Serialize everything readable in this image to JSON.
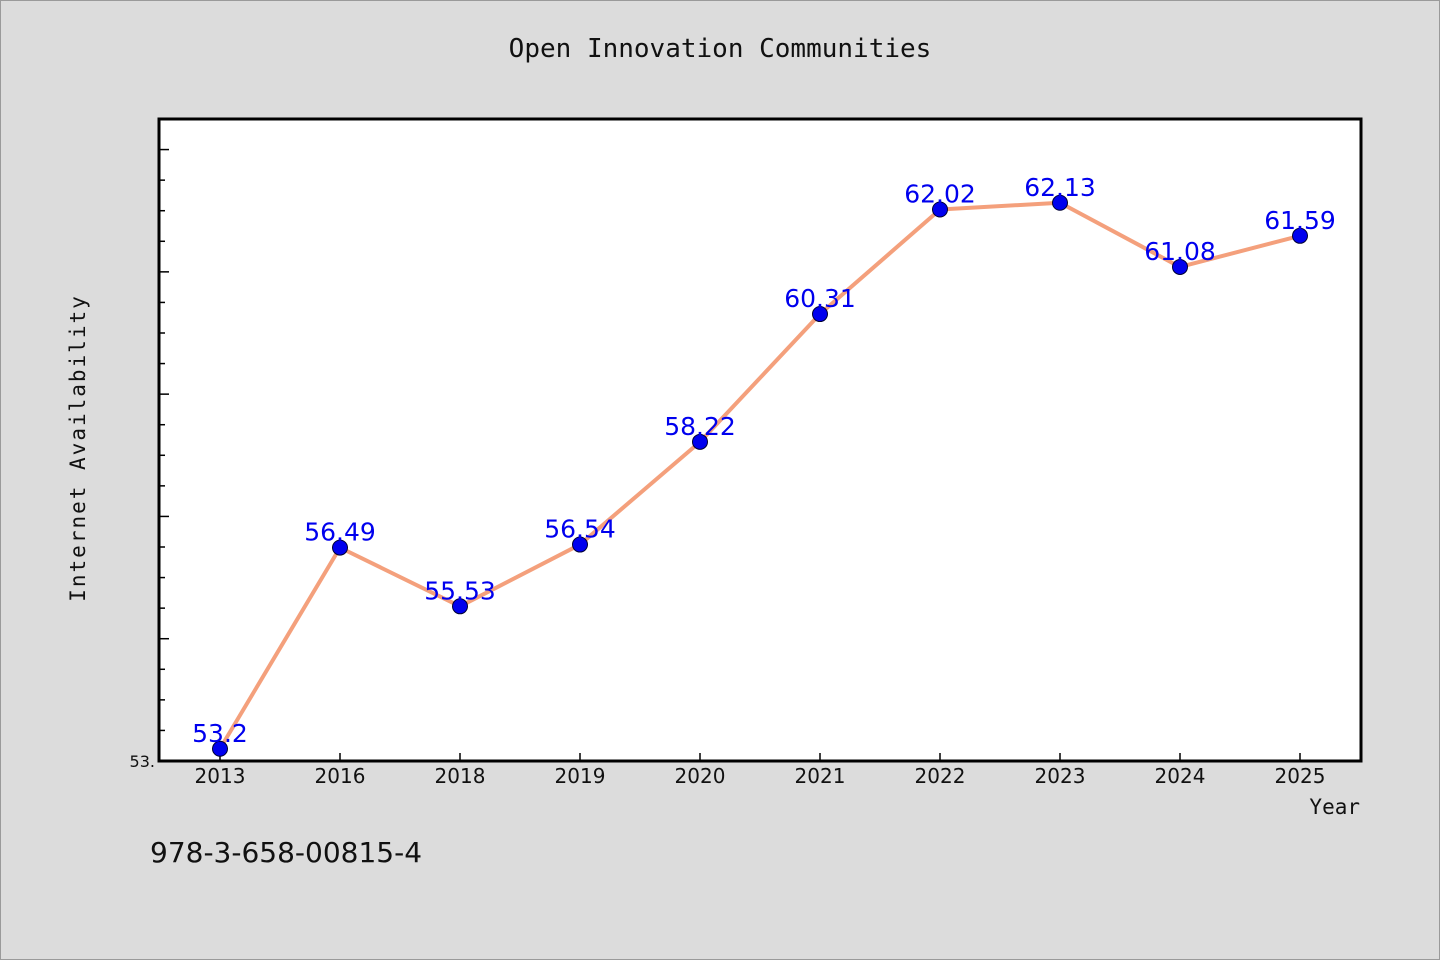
{
  "chart_data": {
    "type": "line",
    "title": "Open Innovation Communities",
    "xlabel": "Year",
    "ylabel": "Internet Availability",
    "categories": [
      "2013",
      "2016",
      "2018",
      "2019",
      "2020",
      "2021",
      "2022",
      "2023",
      "2024",
      "2025"
    ],
    "series": [
      {
        "values": [
          53.2,
          56.49,
          55.53,
          56.54,
          58.22,
          60.31,
          62.02,
          62.13,
          61.08,
          61.59
        ],
        "data_labels": [
          "53.2",
          "56.49",
          "55.53",
          "56.54",
          "58.22",
          "60.31",
          "62.02",
          "62.13",
          "61.08",
          "61.59"
        ]
      }
    ],
    "ylim": [
      53.0,
      63.5
    ],
    "ytick_label": "53.",
    "grid": false,
    "line_color": "#f4a07c",
    "marker_color": "#0000ee",
    "label_color": "#0000ee"
  },
  "footer_text": "978-3-658-00815-4"
}
